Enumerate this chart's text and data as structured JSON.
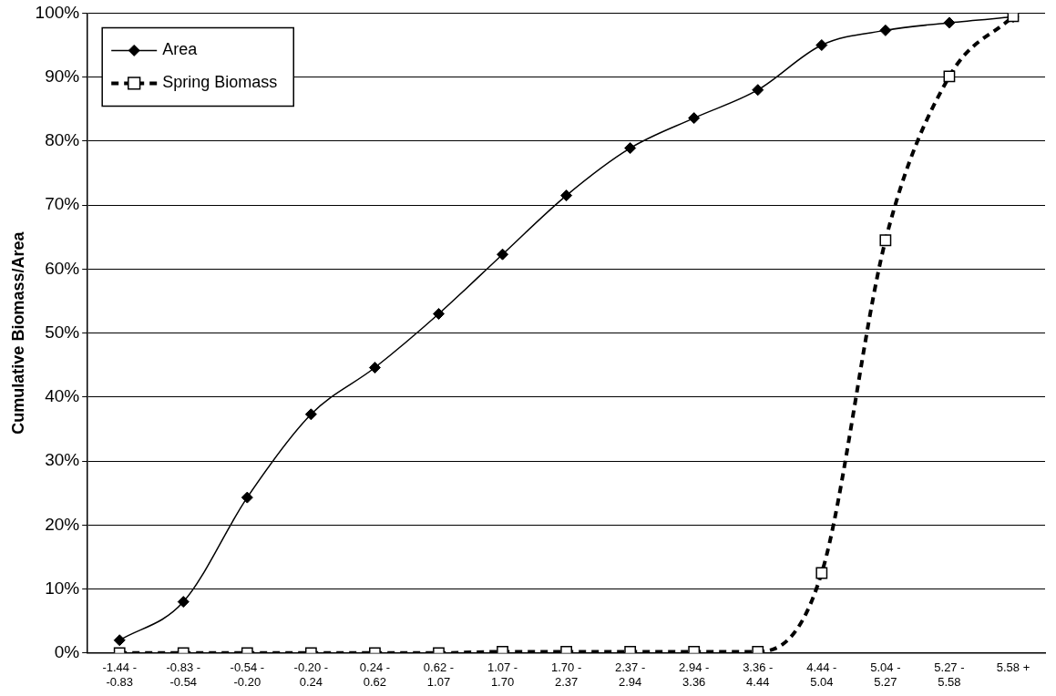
{
  "chart_data": {
    "type": "line",
    "ylabel": "Cumulative Biomass/Area",
    "categories": [
      "-1.44 - -0.83",
      "-0.83 - -0.54",
      "-0.54 - -0.20",
      "-0.20 - 0.24",
      "0.24 - 0.62",
      "0.62 - 1.07",
      "1.07 - 1.70",
      "1.70 - 2.37",
      "2.37 - 2.94",
      "2.94 - 3.36",
      "3.36 - 4.44",
      "4.44 - 5.04",
      "5.04 - 5.27",
      "5.27 - 5.58",
      "5.58 +"
    ],
    "series": [
      {
        "name": "Area",
        "color": "#000000",
        "marker": "diamond",
        "line_style": "solid",
        "values": [
          2,
          8,
          24.3,
          37.3,
          44.6,
          53,
          62.3,
          71.5,
          78.9,
          83.6,
          88,
          95,
          97.3,
          98.5,
          99.4
        ]
      },
      {
        "name": "Spring Biomass",
        "color": "#000000",
        "marker": "square",
        "line_style": "dashed",
        "values": [
          0,
          0,
          0,
          0,
          0,
          0,
          0.2,
          0.2,
          0.2,
          0.2,
          0.2,
          12.5,
          64.5,
          90.1,
          99.5
        ]
      }
    ],
    "ylim": [
      0,
      100
    ],
    "yticks": [
      {
        "value": 0,
        "label": "0%"
      },
      {
        "value": 10,
        "label": "10%"
      },
      {
        "value": 20,
        "label": "20%"
      },
      {
        "value": 30,
        "label": "30%"
      },
      {
        "value": 40,
        "label": "40%"
      },
      {
        "value": 50,
        "label": "50%"
      },
      {
        "value": 60,
        "label": "60%"
      },
      {
        "value": 70,
        "label": "70%"
      },
      {
        "value": 80,
        "label": "80%"
      },
      {
        "value": 90,
        "label": "90%"
      },
      {
        "value": 100,
        "label": "100%"
      }
    ],
    "grid": "y",
    "legend": "top left"
  }
}
